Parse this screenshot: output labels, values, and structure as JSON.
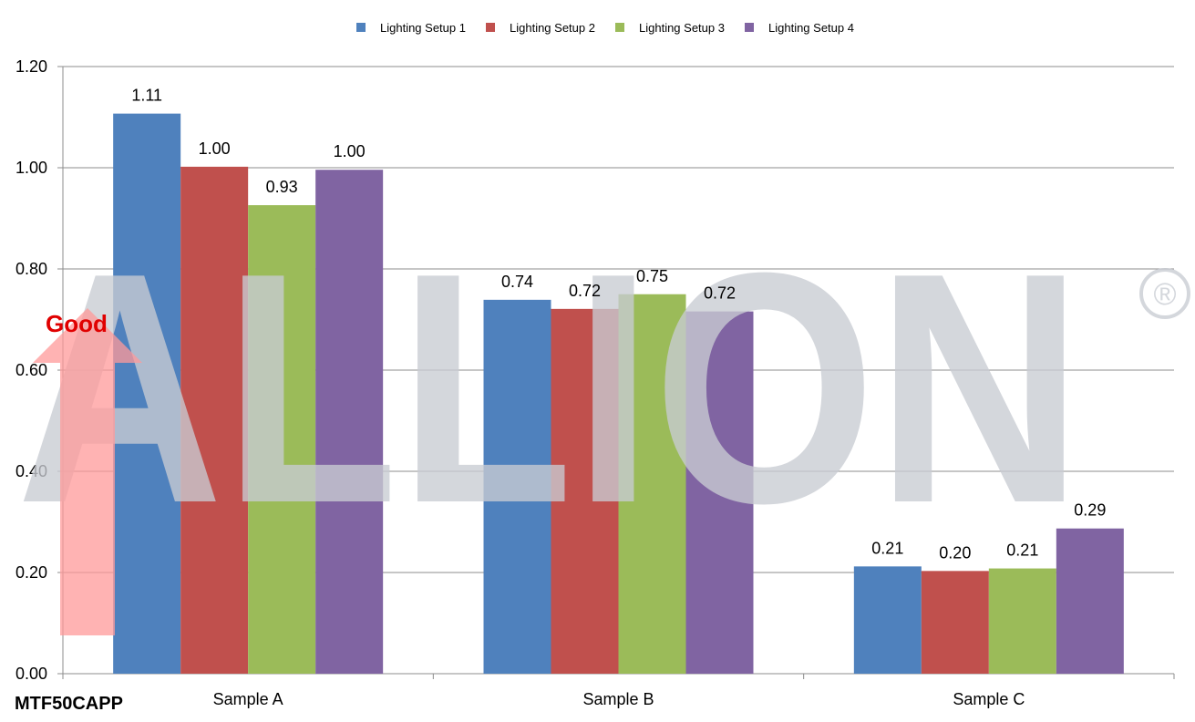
{
  "chart_data": {
    "type": "bar",
    "categories": [
      "Sample A",
      "Sample B",
      "Sample C"
    ],
    "series": [
      {
        "name": "Lighting Setup 1",
        "color": "#4f81bd",
        "values": [
          1.107,
          0.739,
          0.212
        ],
        "labels": [
          "1.11",
          "0.74",
          "0.21"
        ]
      },
      {
        "name": "Lighting Setup 2",
        "color": "#c0504d",
        "values": [
          1.002,
          0.721,
          0.203
        ],
        "labels": [
          "1.00",
          "0.72",
          "0.20"
        ]
      },
      {
        "name": "Lighting Setup 3",
        "color": "#9bbb59",
        "values": [
          0.926,
          0.75,
          0.208
        ],
        "labels": [
          "0.93",
          "0.75",
          "0.21"
        ]
      },
      {
        "name": "Lighting Setup 4",
        "color": "#8064a2",
        "values": [
          0.996,
          0.716,
          0.287
        ],
        "labels": [
          "1.00",
          "0.72",
          "0.29"
        ]
      }
    ],
    "ylim": [
      0,
      1.2
    ],
    "yticks": [
      "0.00",
      "0.20",
      "0.40",
      "0.60",
      "0.80",
      "1.00",
      "1.20"
    ],
    "grid": true,
    "legend_position": "top"
  },
  "metric_label": "MTF50CAPP",
  "annotation": {
    "text": "Good",
    "color": "#e00000",
    "arrow_color": "#ff9a9a"
  },
  "watermark": {
    "text": "ALLION",
    "registered": "®",
    "color": "#c9ccd3"
  }
}
